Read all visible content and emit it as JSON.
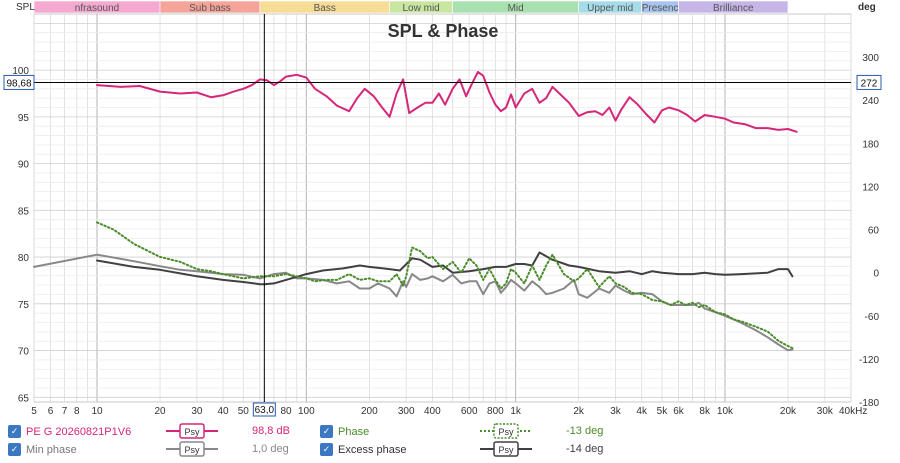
{
  "chart_data": {
    "type": "line",
    "title": "SPL & Phase",
    "xlabel": "",
    "x_unit_label": "Hz",
    "x_scale": "log",
    "xlim": [
      5,
      40000
    ],
    "ylabel": "SPL",
    "ylim": [
      64.5,
      106
    ],
    "y2label": "deg",
    "y2lim": [
      -180,
      360
    ],
    "x_ticks": [
      5,
      6,
      7,
      8,
      10,
      20,
      30,
      40,
      50,
      63,
      80,
      100,
      200,
      300,
      400,
      600,
      800,
      1000,
      2000,
      3000,
      4000,
      5000,
      6000,
      8000,
      10000,
      20000,
      30000,
      40000
    ],
    "x_tick_labels": [
      "5",
      "6",
      "7",
      "8",
      "10",
      "20",
      "30",
      "40",
      "50",
      "63,0",
      "80",
      "100",
      "200",
      "300",
      "400",
      "600",
      "800",
      "1k",
      "2k",
      "3k",
      "4k",
      "5k",
      "6k",
      "8k",
      "10k",
      "20k",
      "30k",
      "40kHz"
    ],
    "y_ticks": [
      65,
      70,
      75,
      80,
      85,
      90,
      95,
      100
    ],
    "y_tick_labels": [
      "65",
      "70",
      "75",
      "80",
      "85",
      "90",
      "95",
      "100"
    ],
    "y2_ticks": [
      -180,
      -120,
      -60,
      0,
      60,
      120,
      180,
      240,
      300
    ],
    "y2_tick_labels": [
      "-180",
      "-120",
      "-60",
      "0",
      "60",
      "120",
      "180",
      "240",
      "300"
    ],
    "grid": true,
    "cursor": {
      "x": 63,
      "x_label": "63,0",
      "y": 98.68,
      "y_label": "98,68",
      "y2_label": "272"
    },
    "bands": [
      {
        "name": "nfrasound",
        "from": 5,
        "to": 20,
        "color": "#f5a8d0"
      },
      {
        "name": "Sub bass",
        "from": 20,
        "to": 60,
        "color": "#f5a49a"
      },
      {
        "name": "Bass",
        "from": 60,
        "to": 250,
        "color": "#f7dc96"
      },
      {
        "name": "Low mid",
        "from": 250,
        "to": 500,
        "color": "#c8e6a0"
      },
      {
        "name": "Mid",
        "from": 500,
        "to": 2000,
        "color": "#a8e0b0"
      },
      {
        "name": "Upper mid",
        "from": 2000,
        "to": 4000,
        "color": "#a6dcea"
      },
      {
        "name": "Presenc",
        "from": 4000,
        "to": 6000,
        "color": "#a8c4ee"
      },
      {
        "name": "Brilliance",
        "from": 6000,
        "to": 20000,
        "color": "#c6b6e8"
      }
    ],
    "series": [
      {
        "name": "PE G 20260821P1V6",
        "axis": "left",
        "color": "#d6267a",
        "style": "solid",
        "x": [
          10,
          13,
          16,
          20,
          25,
          30,
          35,
          40,
          45,
          50,
          55,
          60,
          65,
          70,
          75,
          80,
          90,
          100,
          110,
          125,
          140,
          160,
          175,
          190,
          210,
          230,
          250,
          270,
          290,
          310,
          340,
          370,
          400,
          430,
          460,
          500,
          540,
          580,
          620,
          660,
          700,
          750,
          800,
          850,
          900,
          950,
          1000,
          1100,
          1200,
          1300,
          1400,
          1500,
          1600,
          1800,
          2000,
          2200,
          2400,
          2600,
          2800,
          3000,
          3200,
          3500,
          3800,
          4200,
          4600,
          5000,
          5400,
          6000,
          6600,
          7200,
          8000,
          9000,
          10000,
          11000,
          12500,
          14000,
          16000,
          18000,
          20000,
          22000
        ],
        "values": [
          98.4,
          98.2,
          98.3,
          97.7,
          97.5,
          97.6,
          97.1,
          97.3,
          97.7,
          98.0,
          98.4,
          99.0,
          98.9,
          98.4,
          98.8,
          99.3,
          99.5,
          99.2,
          98.0,
          97.2,
          96.2,
          95.6,
          97.0,
          98.0,
          97.2,
          96.0,
          95.0,
          97.5,
          99.0,
          95.4,
          96.0,
          96.5,
          96.5,
          97.5,
          96.3,
          98.0,
          99.0,
          97.2,
          98.6,
          99.8,
          99.4,
          97.6,
          96.3,
          95.6,
          96.0,
          97.4,
          96.0,
          97.5,
          98.0,
          96.5,
          97.0,
          98.2,
          97.6,
          96.5,
          95.1,
          95.5,
          95.6,
          95.2,
          96.0,
          94.6,
          95.8,
          97.1,
          96.4,
          95.3,
          94.4,
          95.7,
          96.0,
          95.7,
          95.2,
          94.5,
          95.2,
          95.0,
          94.8,
          94.4,
          94.2,
          93.8,
          93.8,
          93.6,
          93.7,
          93.4
        ]
      },
      {
        "name": "Min phase",
        "axis": "right",
        "color": "#888888",
        "style": "solid",
        "x": [
          5,
          10,
          15,
          20,
          25,
          30,
          35,
          40,
          50,
          60,
          70,
          80,
          90,
          100,
          120,
          140,
          160,
          180,
          200,
          220,
          250,
          270,
          290,
          300,
          320,
          350,
          380,
          400,
          450,
          500,
          550,
          600,
          650,
          700,
          750,
          800,
          850,
          900,
          950,
          1000,
          1100,
          1200,
          1300,
          1400,
          1500,
          1700,
          1900,
          2000,
          2200,
          2500,
          2800,
          3000,
          3300,
          3600,
          4000,
          4500,
          5000,
          5500,
          6000,
          6500,
          7000,
          7500,
          8000,
          9000,
          10000,
          11000,
          12000,
          14000,
          16000,
          18000,
          20000,
          21000
        ],
        "values": [
          8,
          25,
          16,
          9,
          4,
          2,
          0,
          -2,
          -3,
          -8,
          -2,
          0,
          -8,
          -8,
          -10,
          -15,
          -12,
          -22,
          -22,
          -15,
          -22,
          -33,
          -12,
          -20,
          -2,
          -10,
          -8,
          -5,
          -12,
          -3,
          -15,
          -12,
          -12,
          -30,
          -15,
          -12,
          -28,
          -20,
          -10,
          -15,
          -25,
          -12,
          -20,
          -30,
          -28,
          -22,
          -10,
          -30,
          -35,
          -22,
          -28,
          -18,
          -25,
          -30,
          -28,
          -30,
          -40,
          -45,
          -45,
          -45,
          -45,
          -42,
          -50,
          -55,
          -60,
          -65,
          -70,
          -80,
          -90,
          -100,
          -108,
          -107
        ]
      },
      {
        "name": "Phase",
        "axis": "right",
        "color": "#4a8c2a",
        "style": "dotted",
        "x": [
          10,
          12,
          15,
          20,
          25,
          30,
          35,
          40,
          50,
          60,
          70,
          80,
          90,
          100,
          110,
          125,
          140,
          160,
          180,
          200,
          220,
          250,
          270,
          290,
          300,
          320,
          350,
          380,
          400,
          450,
          500,
          550,
          600,
          650,
          700,
          750,
          800,
          850,
          900,
          950,
          1000,
          1100,
          1200,
          1300,
          1400,
          1500,
          1700,
          1900,
          2000,
          2200,
          2500,
          2800,
          3000,
          3300,
          3600,
          4000,
          4500,
          5000,
          5500,
          6000,
          6500,
          7000,
          7500,
          8000,
          9000,
          10000,
          11000,
          12000,
          14000,
          16000,
          18000,
          20000,
          21000
        ],
        "values": [
          70,
          60,
          40,
          22,
          15,
          5,
          2,
          -2,
          -8,
          -5,
          -5,
          -2,
          -5,
          -8,
          -12,
          -10,
          -10,
          -2,
          -10,
          -8,
          -12,
          -12,
          -2,
          -18,
          -5,
          35,
          30,
          20,
          22,
          5,
          15,
          0,
          20,
          10,
          -10,
          5,
          -10,
          -22,
          -15,
          5,
          0,
          -15,
          10,
          -10,
          10,
          25,
          -2,
          -12,
          -8,
          5,
          -20,
          -5,
          -15,
          -20,
          -28,
          -30,
          -38,
          -40,
          -45,
          -40,
          -45,
          -42,
          -48,
          -45,
          -55,
          -58,
          -65,
          -68,
          -75,
          -82,
          -95,
          -102,
          -105
        ]
      },
      {
        "name": "Excess phase",
        "axis": "right",
        "color": "#404040",
        "style": "solid",
        "x": [
          10,
          15,
          20,
          25,
          30,
          40,
          50,
          60,
          63,
          70,
          80,
          100,
          120,
          150,
          180,
          200,
          250,
          280,
          320,
          350,
          400,
          450,
          500,
          600,
          700,
          800,
          900,
          1000,
          1100,
          1200,
          1300,
          1500,
          1800,
          2000,
          2500,
          3000,
          3500,
          4000,
          4500,
          5000,
          6000,
          7000,
          8000,
          9000,
          10000,
          12000,
          14000,
          16000,
          18000,
          20000,
          21000
        ],
        "values": [
          17,
          8,
          4,
          -1,
          -5,
          -10,
          -13,
          -16,
          -16,
          -15,
          -10,
          -2,
          3,
          6,
          10,
          8,
          5,
          3,
          20,
          18,
          8,
          10,
          0,
          2,
          5,
          8,
          8,
          12,
          12,
          10,
          28,
          18,
          10,
          8,
          2,
          0,
          2,
          -2,
          2,
          0,
          -2,
          -2,
          0,
          -2,
          -3,
          -2,
          -1,
          0,
          5,
          5,
          -5
        ]
      }
    ]
  },
  "legend": {
    "entries": [
      {
        "name": "PE G 20260821P1V6",
        "value": "98,8 dB",
        "swatch_label": "Psy",
        "color": "#d6267a"
      },
      {
        "name": "Min phase",
        "value": "1,0 deg",
        "swatch_label": "Psy",
        "color": "#888888"
      },
      {
        "name": "Phase",
        "value": "-13 deg",
        "swatch_label": "Psy",
        "color": "#4a8c2a"
      },
      {
        "name": "Excess phase",
        "value": "-14 deg",
        "swatch_label": "Psy",
        "color": "#404040"
      }
    ]
  },
  "colors": {
    "grid": "#dcdcdc",
    "grid_major": "#b4b4b4",
    "cursor": "#000000",
    "axis_label": "#333333",
    "checkbox": "#3a78c2"
  }
}
